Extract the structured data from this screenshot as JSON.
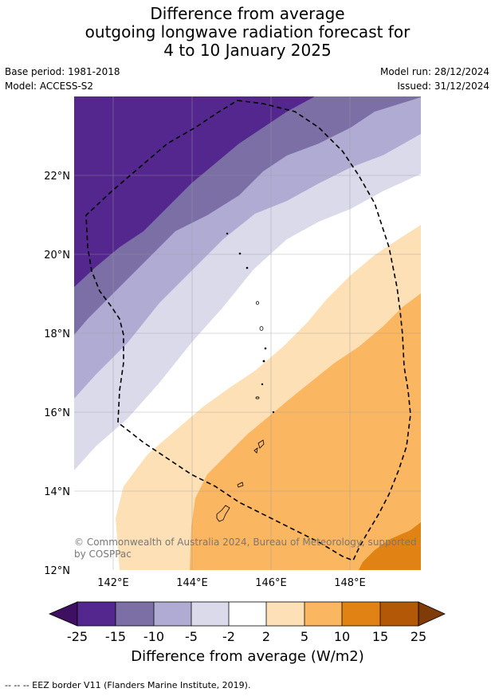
{
  "title": {
    "line1": "Difference from average",
    "line2": "outgoing longwave radiation forecast for",
    "line3": "4 to 10 January 2025"
  },
  "meta": {
    "base_period": "Base period: 1981-2018",
    "model": "Model: ACCESS-S2",
    "model_run": "Model run: 28/12/2024",
    "issued": "Issued: 31/12/2024"
  },
  "map": {
    "lat_labels": [
      "22°N",
      "20°N",
      "18°N",
      "16°N",
      "14°N",
      "12°N"
    ],
    "lon_labels": [
      "142°E",
      "144°E",
      "146°E",
      "148°E"
    ],
    "copyright": "© Commonwealth of Australia 2024, Bureau of Meteorology, supported by COSPPac",
    "copyright_line1": "© Commonwealth of Australia 2024, Bureau of Meteorology, supported",
    "copyright_line2": "by COSPPac"
  },
  "colorbar": {
    "tick_labels": [
      "-25",
      "-15",
      "-10",
      "-5",
      "-2",
      "2",
      "5",
      "10",
      "15",
      "25"
    ],
    "colors": [
      "#3f0f61",
      "#54278f",
      "#7b6fa6",
      "#b0abd2",
      "#dadaeb",
      "#ffffff",
      "#fde0b6",
      "#fbb662",
      "#e08214",
      "#b35806",
      "#7f3b08"
    ],
    "title": "Difference from average (W/m2)"
  },
  "footnote": "-- -- -- EEZ border V11 (Flanders Marine Institute, 2019)."
}
